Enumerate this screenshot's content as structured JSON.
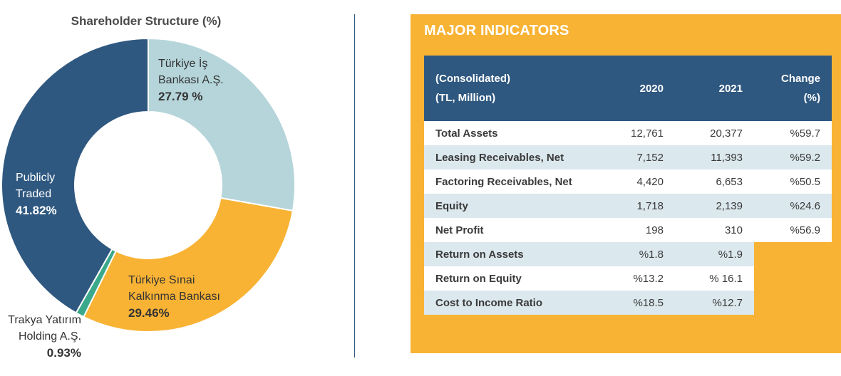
{
  "chart_data": {
    "type": "pie",
    "title": "Shareholder Structure (%)",
    "slices": [
      {
        "name_lines": [
          "Türkiye İş",
          "Bankası A.Ş."
        ],
        "value": 27.79,
        "value_label": "27.79 %",
        "color": "#b5d5da"
      },
      {
        "name_lines": [
          "Türkiye Sınai",
          "Kalkınma Bankası"
        ],
        "value": 29.46,
        "value_label": "29.46%",
        "color": "#f8b334"
      },
      {
        "name_lines": [
          "Trakya Yatırım",
          "Holding A.Ş."
        ],
        "value": 0.93,
        "value_label": "0.93%",
        "color": "#3aa88a"
      },
      {
        "name_lines": [
          "Publicly",
          "Traded"
        ],
        "value": 41.82,
        "value_label": "41.82%",
        "color": "#2f5880"
      }
    ]
  },
  "indicators": {
    "title": "MAJOR INDICATORS",
    "header": {
      "label_line1": "(Consolidated)",
      "label_line2": "(TL, Million)",
      "y2020": "2020",
      "y2021": "2021",
      "change_line1": "Change",
      "change_line2": "(%)"
    },
    "rows": [
      {
        "label": "Total Assets",
        "v2020": "12,761",
        "v2021": "20,377",
        "change": "%59.7"
      },
      {
        "label": "Leasing Receivables, Net",
        "v2020": "7,152",
        "v2021": "11,393",
        "change": "%59.2"
      },
      {
        "label": "Factoring Receivables, Net",
        "v2020": "4,420",
        "v2021": "6,653",
        "change": "%50.5"
      },
      {
        "label": "Equity",
        "v2020": "1,718",
        "v2021": "2,139",
        "change": "%24.6"
      },
      {
        "label": "Net Profit",
        "v2020": "198",
        "v2021": "310",
        "change": "%56.9"
      },
      {
        "label": "Return on Assets",
        "v2020": "%1.8",
        "v2021": "%1.9",
        "change": ""
      },
      {
        "label": "Return on Equity",
        "v2020": "%13.2",
        "v2021": "% 16.1",
        "change": ""
      },
      {
        "label": "Cost to Income Ratio",
        "v2020": "%18.5",
        "v2021": "%12.7",
        "change": ""
      }
    ]
  }
}
